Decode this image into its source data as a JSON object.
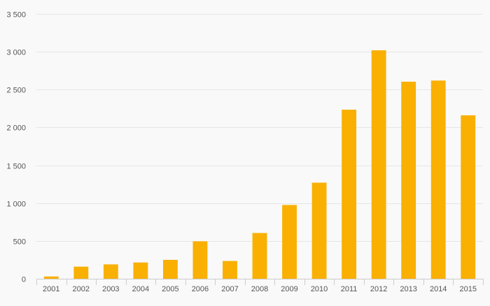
{
  "chart_data": {
    "type": "bar",
    "title": "",
    "xlabel": "",
    "ylabel": "",
    "categories": [
      "2001",
      "2002",
      "2003",
      "2004",
      "2005",
      "2006",
      "2007",
      "2008",
      "2009",
      "2010",
      "2011",
      "2012",
      "2013",
      "2014",
      "2015"
    ],
    "values": [
      30,
      160,
      190,
      215,
      250,
      495,
      235,
      605,
      975,
      1270,
      2235,
      3020,
      2605,
      2620,
      2160
    ],
    "ylim": [
      0,
      3500
    ],
    "yticks": [
      0,
      500,
      1000,
      1500,
      2000,
      2500,
      3000,
      3500
    ],
    "ytick_labels": [
      "0",
      "500",
      "1 000",
      "1 500",
      "2 000",
      "2 500",
      "3 000",
      "3 500"
    ],
    "grid": true,
    "legend": "none",
    "colors": {
      "bar": "#f9b000",
      "grid": "#e6e6e6",
      "axis": "#cccccc",
      "text": "#555555",
      "background": "#f9f9f9"
    }
  }
}
